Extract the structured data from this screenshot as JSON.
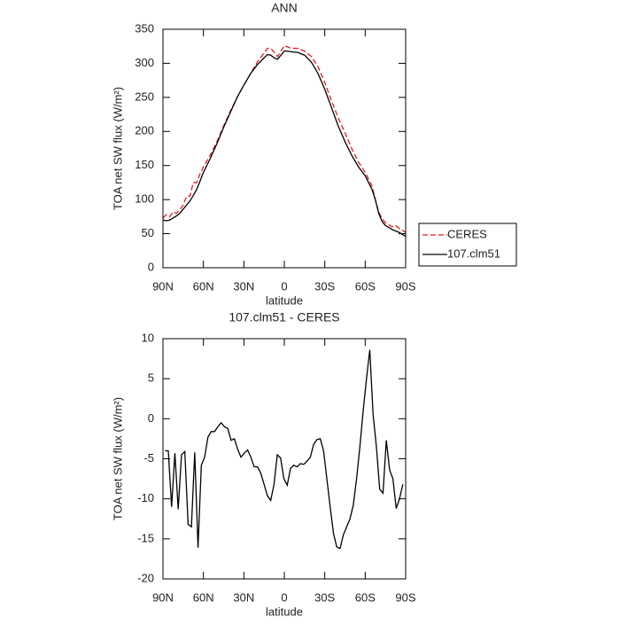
{
  "chart_data": [
    {
      "type": "line",
      "title": "ANN",
      "x_label": "latitude",
      "y_label": "TOA net SW flux (W/m²)",
      "x": [
        90,
        87.5,
        85,
        82.5,
        80,
        77.5,
        75,
        72.5,
        70,
        67.5,
        65,
        62.5,
        60,
        55,
        50,
        45,
        40,
        35,
        30,
        25,
        20,
        15,
        12.5,
        10,
        7.5,
        5,
        2.5,
        0,
        -2.5,
        -5,
        -10,
        -15,
        -20,
        -25,
        -30,
        -35,
        -40,
        -45,
        -50,
        -55,
        -60,
        -65,
        -67.5,
        -70,
        -72.5,
        -75,
        -80,
        -82.5,
        -85,
        -87.5,
        -90
      ],
      "series": [
        {
          "name": "CERES",
          "color": "#e41a1c",
          "line_style": "dashed",
          "values": [
            73,
            78,
            75,
            82,
            80,
            85,
            92,
            105,
            105,
            125,
            125,
            138,
            148,
            165,
            185,
            208,
            230,
            250,
            268,
            285,
            302,
            315,
            322,
            322,
            316,
            310,
            318,
            326,
            324,
            322,
            322,
            318,
            310,
            295,
            272,
            245,
            220,
            198,
            175,
            155,
            140,
            120,
            100,
            82,
            72,
            66,
            60,
            62,
            58,
            55,
            52
          ]
        },
        {
          "name": "107.clm51",
          "color": "#000000",
          "line_style": "solid",
          "values": [
            70,
            69,
            70,
            73,
            76,
            80,
            86,
            92,
            98,
            106,
            115,
            127,
            140,
            160,
            182,
            206,
            228,
            250,
            268,
            285,
            298,
            308,
            313,
            312,
            308,
            306,
            312,
            318,
            318,
            317,
            316,
            312,
            302,
            285,
            262,
            235,
            208,
            185,
            165,
            148,
            135,
            115,
            100,
            80,
            68,
            62,
            56,
            54,
            52,
            49,
            46
          ]
        }
      ],
      "xlim": [
        90,
        -90
      ],
      "xticks": [
        {
          "value": 90,
          "label": "90N"
        },
        {
          "value": 60,
          "label": "60N"
        },
        {
          "value": 30,
          "label": "30N"
        },
        0,
        {
          "value": -30,
          "label": "30S"
        },
        {
          "value": -60,
          "label": "60S"
        },
        {
          "value": -90,
          "label": "90S"
        }
      ],
      "ylim": [
        0,
        350
      ],
      "yticks": [
        0,
        50,
        100,
        150,
        200,
        250,
        300,
        350
      ],
      "legend": "outside-right"
    },
    {
      "type": "line",
      "title": "107.clm51 - CERES",
      "x_label": "latitude",
      "y_label": "TOA net SW flux (W/m²)",
      "x": [
        88.5,
        86.05,
        83.6,
        81.15,
        78.7,
        76.25,
        73.8,
        71.35,
        68.9,
        66.45,
        64,
        61.55,
        59.1,
        56.65,
        54.2,
        51.75,
        49.3,
        46.85,
        44.4,
        41.95,
        39.5,
        37.05,
        34.6,
        32.15,
        29.7,
        27.25,
        24.8,
        22.35,
        19.9,
        17.45,
        15,
        12.55,
        10.1,
        7.65,
        5.2,
        2.75,
        0.3,
        -2.15,
        -4.6,
        -7.05,
        -9.5,
        -11.95,
        -14.4,
        -16.85,
        -19.3,
        -21.75,
        -24.2,
        -26.65,
        -29.1,
        -31.55,
        -34,
        -36.45,
        -38.9,
        -41.35,
        -43.8,
        -46.25,
        -48.7,
        -51.15,
        -53.6,
        -56.05,
        -58.5,
        -60.95,
        -63.4,
        -65.85,
        -68.3,
        -70.75,
        -73.2,
        -75.65,
        -78.1,
        -80.55,
        -83,
        -85.45,
        -87.9
      ],
      "values": [
        -4,
        -4,
        -11,
        -4.3,
        -11.3,
        -4.5,
        -4.1,
        -13.2,
        -13.5,
        -4.2,
        -16.1,
        -5.8,
        -4.8,
        -2.3,
        -1.6,
        -1.6,
        -1,
        -0.5,
        -1,
        -1.2,
        -2.7,
        -2.5,
        -3.8,
        -4.8,
        -4.3,
        -3.9,
        -4.8,
        -6,
        -6,
        -6.8,
        -8.2,
        -9.6,
        -10.2,
        -8.2,
        -4.5,
        -4.9,
        -7.5,
        -8.3,
        -6.2,
        -5.8,
        -6,
        -5.6,
        -5.7,
        -5.3,
        -4.8,
        -3.2,
        -2.6,
        -2.5,
        -4,
        -7.5,
        -11,
        -14.3,
        -16,
        -16.2,
        -14.5,
        -13.5,
        -12.5,
        -10.8,
        -7.5,
        -3.5,
        1,
        5,
        8.6,
        0.5,
        -3.5,
        -8.8,
        -9.3,
        -2.7,
        -6.4,
        -7.5,
        -11.2,
        -10,
        -8.2
      ],
      "color": "#000000",
      "xlim": [
        90,
        -90
      ],
      "xticks": [
        {
          "value": 90,
          "label": "90N"
        },
        {
          "value": 60,
          "label": "60N"
        },
        {
          "value": 30,
          "label": "30N"
        },
        0,
        {
          "value": -30,
          "label": "30S"
        },
        {
          "value": -60,
          "label": "60S"
        },
        {
          "value": -90,
          "label": "90S"
        }
      ],
      "ylim": [
        -20,
        10
      ],
      "yticks": [
        -20,
        -15,
        -10,
        -5,
        0,
        5,
        10
      ]
    }
  ]
}
